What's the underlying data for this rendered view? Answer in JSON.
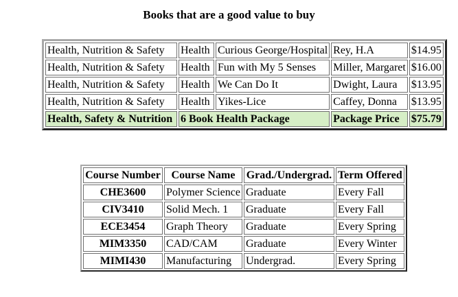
{
  "page": {
    "title": "Books that are a good value to buy"
  },
  "colors": {
    "highlight_green": "#d6eec6",
    "outer_border_light": "#a8a8a8",
    "outer_border_dark": "#262626",
    "cell_border": "#6e6e6e",
    "text": "#000000",
    "background": "#ffffff"
  },
  "books_table": {
    "rows": [
      {
        "category": "Health, Nutrition & Safety",
        "subject": "Health",
        "title": "Curious George/Hospital",
        "author": "Rey, H.A",
        "price": "$14.95"
      },
      {
        "category": "Health, Nutrition & Safety",
        "subject": "Health",
        "title": "Fun with My 5 Senses",
        "author": "Miller, Margaret",
        "price": "$16.00"
      },
      {
        "category": "Health, Nutrition & Safety",
        "subject": "Health",
        "title": "We Can Do It",
        "author": "Dwight, Laura",
        "price": "$13.95"
      },
      {
        "category": "Health, Nutrition & Safety",
        "subject": "Health",
        "title": "Yikes-Lice",
        "author": "Caffey, Donna",
        "price": "$13.95"
      }
    ],
    "summary_row": {
      "category": "Health, Safety & Nutrition",
      "package": "6 Book Health Package",
      "label": "Package Price",
      "price": "$75.79"
    }
  },
  "courses_table": {
    "headers": {
      "number": "Course Number",
      "name": "Course Name",
      "level": "Grad./Undergrad.",
      "term": "Term Offered"
    },
    "rows": [
      {
        "number": "CHE3600",
        "name": "Polymer Science",
        "level": "Graduate",
        "term": "Every Fall"
      },
      {
        "number": "CIV3410",
        "name": "Solid Mech. 1",
        "level": "Graduate",
        "term": "Every Fall"
      },
      {
        "number": "ECE3454",
        "name": "Graph Theory",
        "level": "Graduate",
        "term": "Every Spring"
      },
      {
        "number": "MIM3350",
        "name": "CAD/CAM",
        "level": "Graduate",
        "term": "Every Winter"
      },
      {
        "number": "MIMI430",
        "name": "Manufacturing",
        "level": "Undergrad.",
        "term": "Every Spring"
      }
    ]
  }
}
